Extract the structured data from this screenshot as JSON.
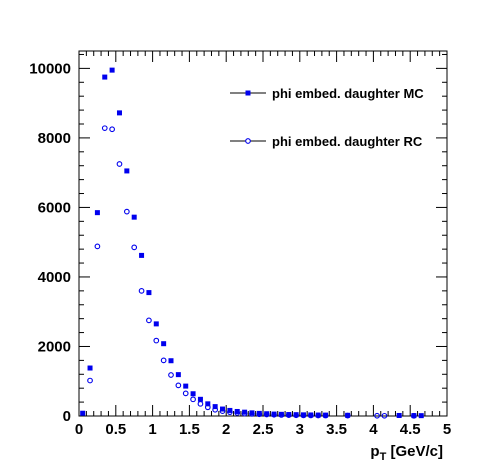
{
  "chart_data": {
    "type": "scatter",
    "xlabel": {
      "main": "p",
      "sub": "T",
      "rest": " [GeV/c]"
    },
    "ylabel": "",
    "xlim": [
      0,
      5
    ],
    "ylim": [
      0,
      10500
    ],
    "x_ticks": [
      0,
      0.5,
      1,
      1.5,
      2,
      2.5,
      3,
      3.5,
      4,
      4.5,
      5
    ],
    "x_tick_labels": [
      "0",
      "0.5",
      "1",
      "1.5",
      "2",
      "2.5",
      "3",
      "3.5",
      "4",
      "4.5",
      "5"
    ],
    "y_ticks": [
      0,
      2000,
      4000,
      6000,
      8000,
      10000
    ],
    "y_tick_labels": [
      "0",
      "2000",
      "4000",
      "6000",
      "8000",
      "10000"
    ],
    "grid": false,
    "legend_position": "top-right",
    "series": [
      {
        "name": "phi embed. daughter MC",
        "marker": "filled-square",
        "color": "#0000ee",
        "x": [
          0.05,
          0.15,
          0.25,
          0.35,
          0.45,
          0.55,
          0.65,
          0.75,
          0.85,
          0.95,
          1.05,
          1.15,
          1.25,
          1.35,
          1.45,
          1.55,
          1.65,
          1.75,
          1.85,
          1.95,
          2.05,
          2.15,
          2.25,
          2.35,
          2.45,
          2.55,
          2.65,
          2.75,
          2.85,
          2.95,
          3.05,
          3.15,
          3.25,
          3.35,
          3.65,
          4.35,
          4.55,
          4.65
        ],
        "y": [
          80,
          1380,
          5850,
          9750,
          9950,
          8720,
          7050,
          5720,
          4620,
          3550,
          2650,
          2080,
          1590,
          1190,
          860,
          640,
          480,
          350,
          270,
          200,
          160,
          130,
          110,
          90,
          75,
          65,
          55,
          48,
          42,
          38,
          33,
          30,
          27,
          25,
          20,
          15,
          12,
          10
        ]
      },
      {
        "name": "phi embed. daughter RC",
        "marker": "open-circle",
        "color": "#0000ee",
        "x": [
          0.15,
          0.25,
          0.35,
          0.45,
          0.55,
          0.65,
          0.75,
          0.85,
          0.95,
          1.05,
          1.15,
          1.25,
          1.35,
          1.45,
          1.55,
          1.65,
          1.75,
          1.85,
          1.95,
          2.05,
          2.15,
          2.25,
          2.35,
          2.45,
          2.55,
          2.65,
          2.75,
          2.85,
          2.95,
          3.05,
          3.15,
          3.25,
          3.35,
          3.65,
          4.05,
          4.15,
          4.55
        ],
        "y": [
          1020,
          4880,
          8280,
          8250,
          7250,
          5880,
          4850,
          3600,
          2750,
          2170,
          1600,
          1180,
          880,
          650,
          480,
          350,
          250,
          180,
          140,
          110,
          90,
          70,
          60,
          50,
          42,
          36,
          30,
          26,
          22,
          19,
          16,
          14,
          12,
          10,
          8,
          6,
          5
        ]
      }
    ]
  }
}
